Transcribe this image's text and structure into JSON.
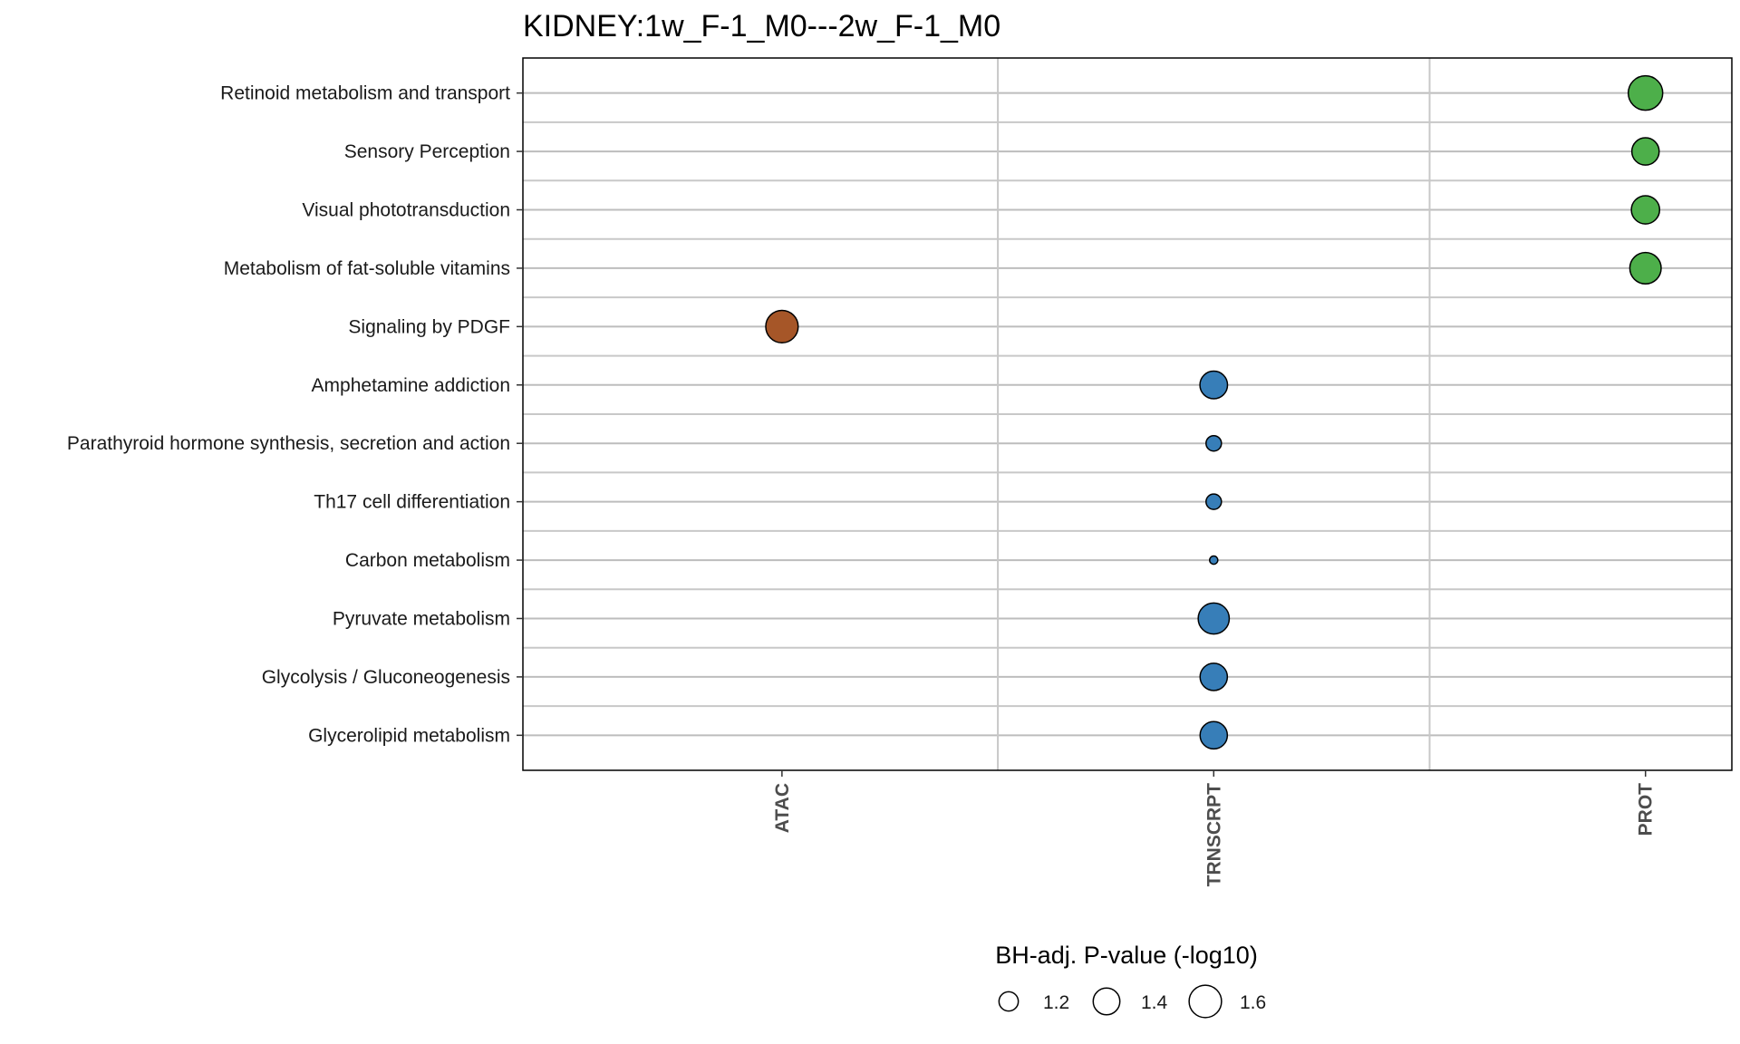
{
  "chart_data": {
    "type": "scatter",
    "title": "KIDNEY:1w_F-1_M0---2w_F-1_M0",
    "xlabel": "",
    "ylabel": "",
    "x_categories": [
      "ATAC",
      "TRNSCRPT",
      "PROT"
    ],
    "y_categories": [
      "Retinoid metabolism and transport",
      "Sensory Perception",
      "Visual phototransduction",
      "Metabolism of fat-soluble vitamins",
      "Signaling by PDGF",
      "Amphetamine addiction",
      "Parathyroid hormone synthesis, secretion and action",
      "Th17 cell differentiation",
      "Carbon metabolism",
      "Pyruvate metabolism",
      "Glycolysis / Gluconeogenesis",
      "Glycerolipid metabolism"
    ],
    "colors": {
      "ATAC": "#a65628",
      "TRNSCRPT": "#377eb8",
      "PROT": "#4daf4a"
    },
    "points": [
      {
        "x": "PROT",
        "y": "Retinoid metabolism and transport",
        "size": 1.68
      },
      {
        "x": "PROT",
        "y": "Sensory Perception",
        "size": 1.42
      },
      {
        "x": "PROT",
        "y": "Visual phototransduction",
        "size": 1.45
      },
      {
        "x": "PROT",
        "y": "Metabolism of fat-soluble vitamins",
        "size": 1.56
      },
      {
        "x": "ATAC",
        "y": "Signaling by PDGF",
        "size": 1.6
      },
      {
        "x": "TRNSCRPT",
        "y": "Amphetamine addiction",
        "size": 1.43
      },
      {
        "x": "TRNSCRPT",
        "y": "Parathyroid hormone synthesis, secretion and action",
        "size": 1.12
      },
      {
        "x": "TRNSCRPT",
        "y": "Th17 cell differentiation",
        "size": 1.12
      },
      {
        "x": "TRNSCRPT",
        "y": "Carbon metabolism",
        "size": 1.02
      },
      {
        "x": "TRNSCRPT",
        "y": "Pyruvate metabolism",
        "size": 1.55
      },
      {
        "x": "TRNSCRPT",
        "y": "Glycolysis / Gluconeogenesis",
        "size": 1.42
      },
      {
        "x": "TRNSCRPT",
        "y": "Glycerolipid metabolism",
        "size": 1.42
      }
    ],
    "size_legend": {
      "title": "BH-adj. P-value (-log10)",
      "breaks": [
        1.2,
        1.4,
        1.6
      ],
      "labels": [
        "1.2",
        "1.4",
        "1.6"
      ],
      "placement": "bottom"
    },
    "grid": true
  }
}
